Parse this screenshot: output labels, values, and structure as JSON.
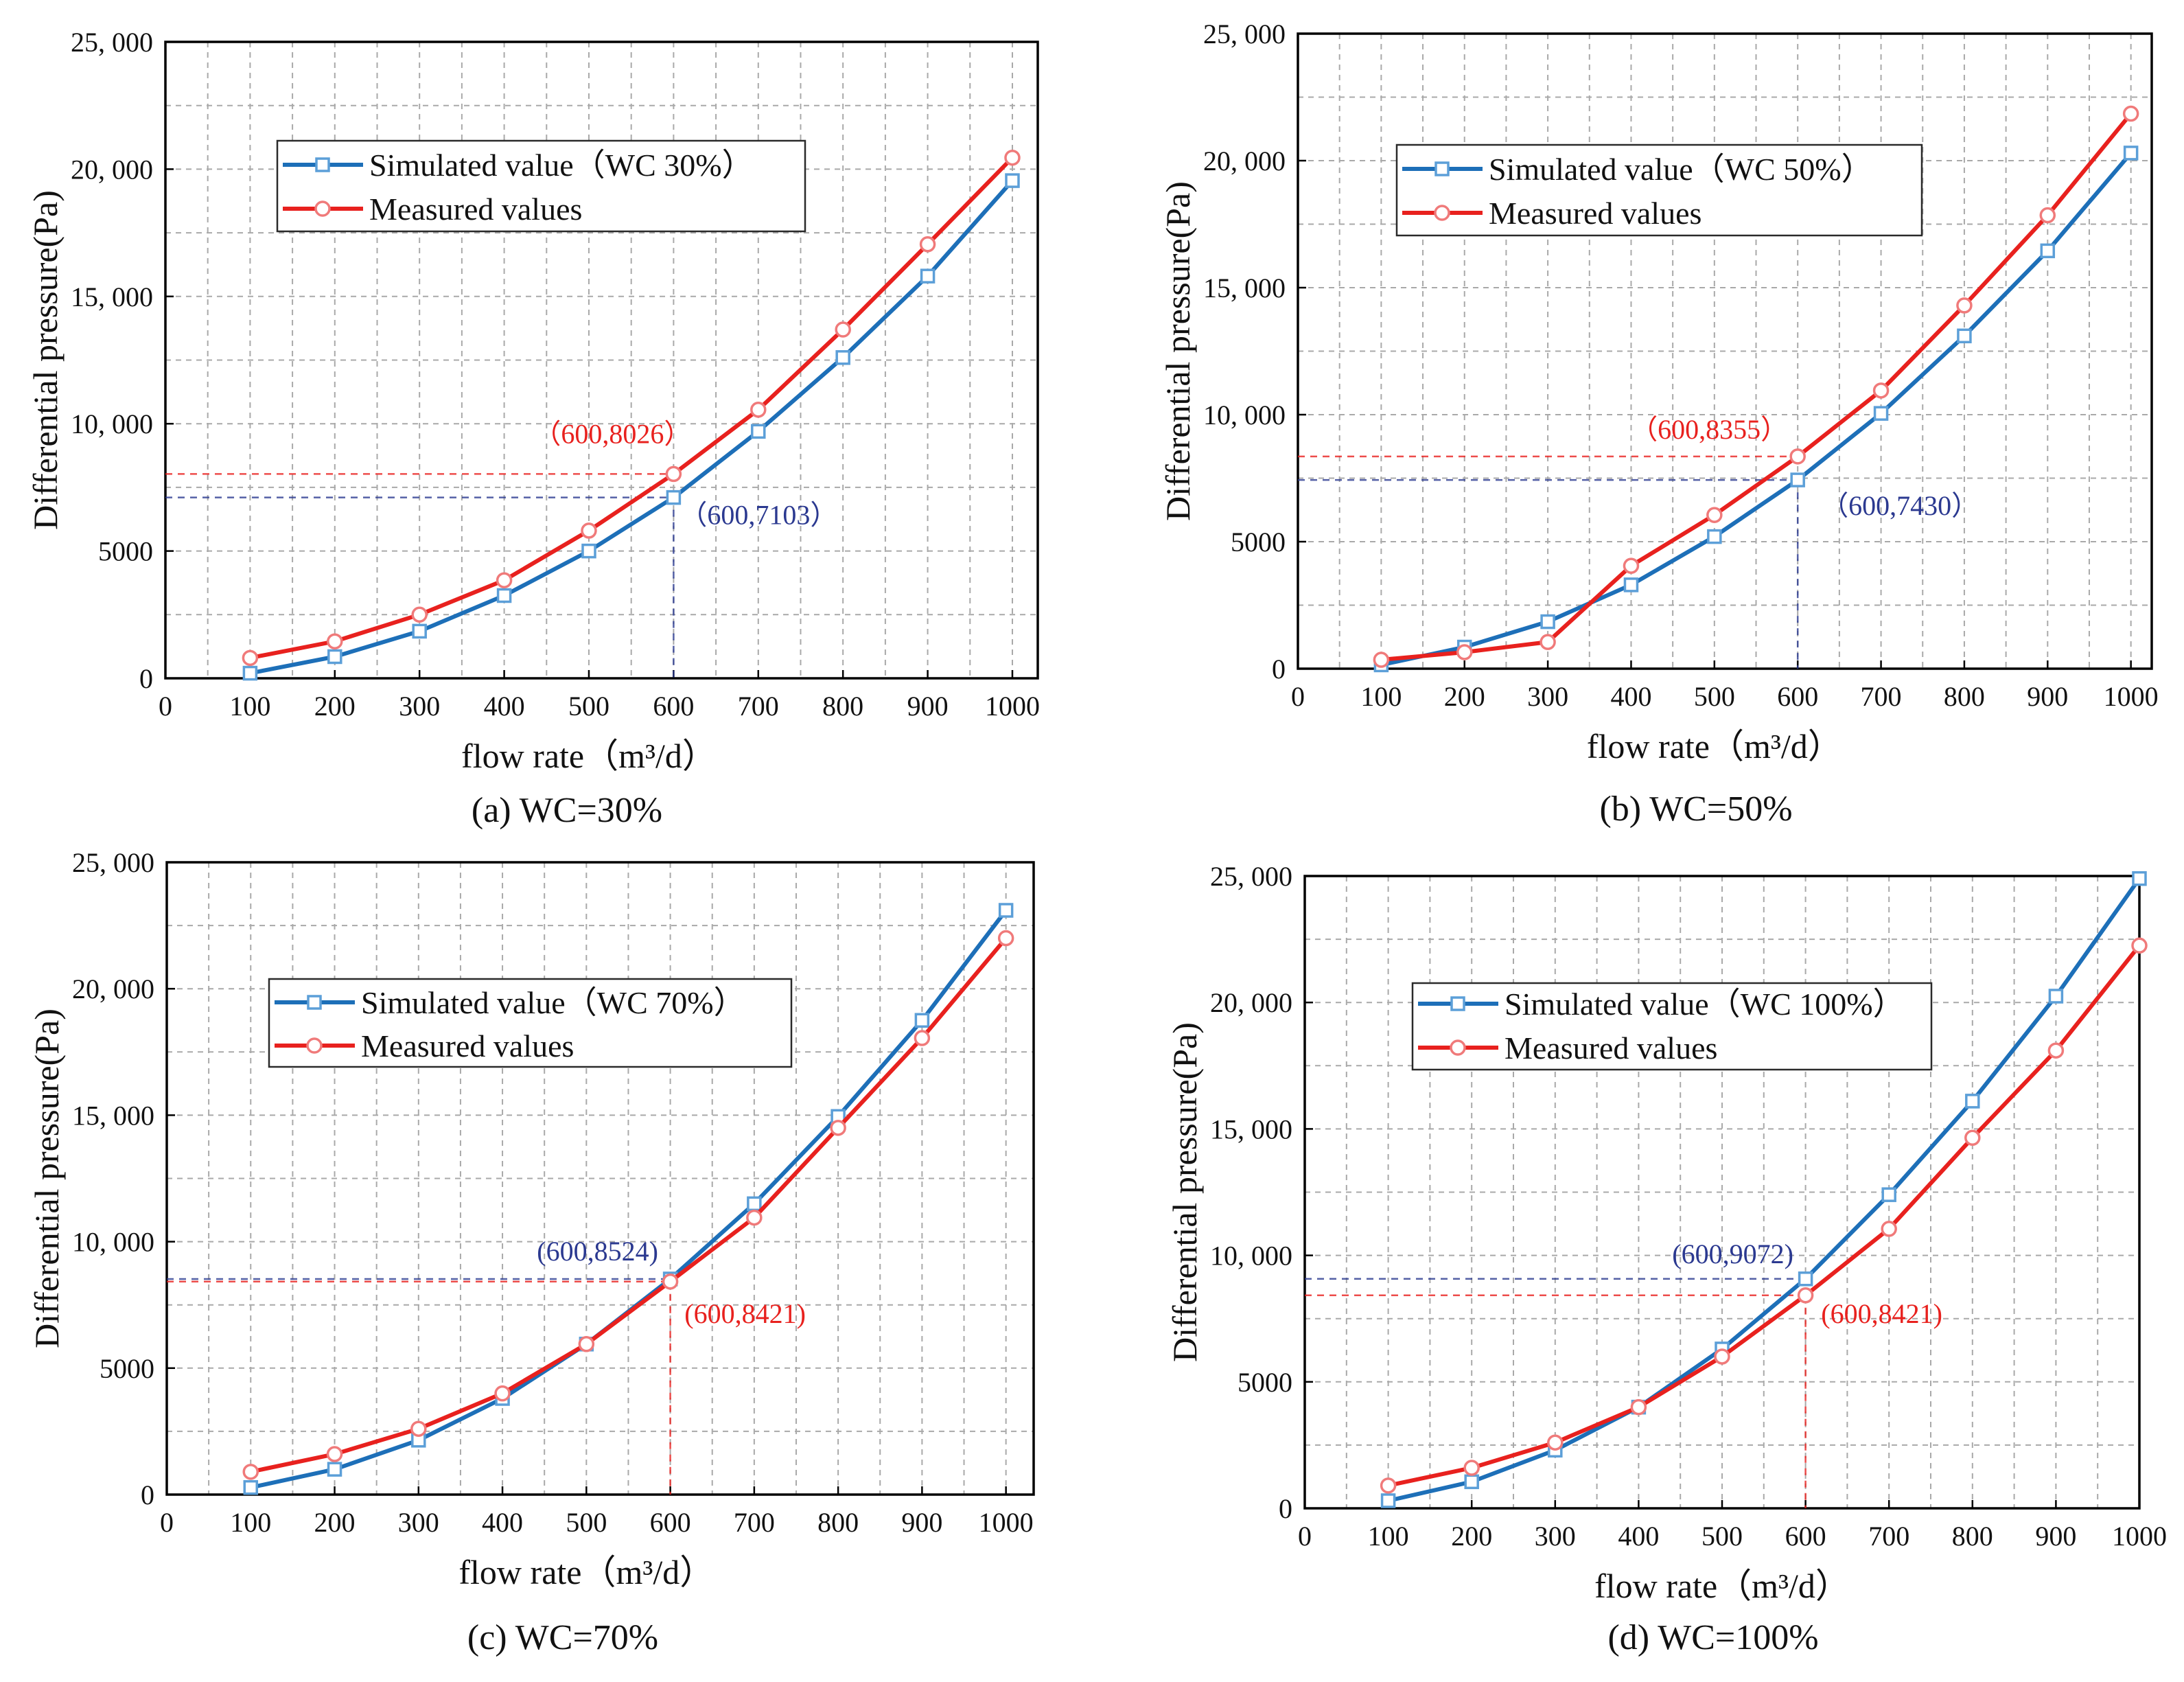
{
  "chart_data": [
    {
      "type": "line",
      "caption": "(a) WC=30%",
      "xlabel": "flow rate（m³/d）",
      "ylabel": "Differential pressure(Pa)",
      "x": [
        100,
        200,
        300,
        400,
        500,
        600,
        700,
        800,
        900,
        1000
      ],
      "x_ticks": [
        0,
        100,
        200,
        300,
        400,
        500,
        600,
        700,
        800,
        900,
        1000
      ],
      "x_tick_labels": [
        "0",
        "100",
        "200",
        "300",
        "400",
        "500",
        "600",
        "700",
        "800",
        "900",
        "1000"
      ],
      "y_ticks": [
        0,
        5000,
        10000,
        15000,
        20000,
        25000
      ],
      "y_tick_labels": [
        "0",
        "5000",
        "10, 000",
        "15, 000",
        "20, 000",
        "25, 000"
      ],
      "xlim": [
        0,
        1030
      ],
      "ylim": [
        0,
        25000
      ],
      "grid": true,
      "legend_position": "upper-left",
      "series": [
        {
          "name": "Simulated value（WC 30%）",
          "color": "#1d6fb8",
          "marker": "square",
          "marker_color": "#5c9fd8",
          "values": [
            200,
            850,
            1850,
            3250,
            5000,
            7103,
            9700,
            12600,
            15800,
            19550
          ]
        },
        {
          "name": "Measured values",
          "color": "#e8211e",
          "marker": "circle",
          "marker_color": "#f07a7a",
          "values": [
            800,
            1450,
            2500,
            3850,
            5800,
            8026,
            10550,
            13700,
            17050,
            20450
          ]
        }
      ],
      "annotations": [
        {
          "text": "（600,8026）",
          "x": 600,
          "y": 8026,
          "color": "#e8211e",
          "vertical_guide": false
        },
        {
          "text": "（600,7103）",
          "x": 600,
          "y": 7103,
          "color": "#2b3990",
          "vertical_guide": true
        }
      ]
    },
    {
      "type": "line",
      "caption": "(b) WC=50%",
      "xlabel": "flow rate（m³/d）",
      "ylabel": "Differential pressure(Pa)",
      "x": [
        100,
        200,
        300,
        400,
        500,
        600,
        700,
        800,
        900,
        1000
      ],
      "x_ticks": [
        0,
        100,
        200,
        300,
        400,
        500,
        600,
        700,
        800,
        900,
        1000
      ],
      "x_tick_labels": [
        "0",
        "100",
        "200",
        "300",
        "400",
        "500",
        "600",
        "700",
        "800",
        "900",
        "1000"
      ],
      "y_ticks": [
        0,
        5000,
        10000,
        15000,
        20000,
        25000
      ],
      "y_tick_labels": [
        "0",
        "5000",
        "10, 000",
        "15, 000",
        "20, 000",
        "25, 000"
      ],
      "xlim": [
        0,
        1025
      ],
      "ylim": [
        0,
        25000
      ],
      "grid": true,
      "legend_position": "upper-left",
      "series": [
        {
          "name": "Simulated value（WC 50%）",
          "color": "#1d6fb8",
          "marker": "square",
          "marker_color": "#5c9fd8",
          "values": [
            150,
            850,
            1850,
            3300,
            5200,
            7430,
            10050,
            13100,
            16450,
            20300
          ]
        },
        {
          "name": "Measured values",
          "color": "#e8211e",
          "marker": "circle",
          "marker_color": "#f07a7a",
          "values": [
            350,
            650,
            1050,
            4050,
            6050,
            8355,
            10950,
            14300,
            17850,
            21850
          ]
        }
      ],
      "annotations": [
        {
          "text": "（600,8355）",
          "x": 600,
          "y": 8355,
          "color": "#e8211e",
          "vertical_guide": false
        },
        {
          "text": "（600,7430）",
          "x": 600,
          "y": 7430,
          "color": "#2b3990",
          "vertical_guide": true
        }
      ]
    },
    {
      "type": "line",
      "caption": "(c) WC=70%",
      "xlabel": "flow rate（m³/d）",
      "ylabel": "Differential pressure(Pa)",
      "x": [
        100,
        200,
        300,
        400,
        500,
        600,
        700,
        800,
        900,
        1000
      ],
      "x_ticks": [
        0,
        100,
        200,
        300,
        400,
        500,
        600,
        700,
        800,
        900,
        1000
      ],
      "x_tick_labels": [
        "0",
        "100",
        "200",
        "300",
        "400",
        "500",
        "600",
        "700",
        "800",
        "900",
        "1000"
      ],
      "y_ticks": [
        0,
        5000,
        10000,
        15000,
        20000,
        25000
      ],
      "y_tick_labels": [
        "0",
        "5000",
        "10, 000",
        "15, 000",
        "20, 000",
        "25, 000"
      ],
      "xlim": [
        0,
        1033
      ],
      "ylim": [
        0,
        25000
      ],
      "grid": true,
      "legend_position": "upper-left",
      "series": [
        {
          "name": "Simulated value（WC 70%）",
          "color": "#1d6fb8",
          "marker": "square",
          "marker_color": "#5c9fd8",
          "values": [
            280,
            1000,
            2150,
            3800,
            5950,
            8524,
            11500,
            14950,
            18750,
            23100
          ]
        },
        {
          "name": "Measured values",
          "color": "#e8211e",
          "marker": "circle",
          "marker_color": "#f07a7a",
          "values": [
            900,
            1600,
            2600,
            4000,
            5950,
            8421,
            10950,
            14500,
            18050,
            22000
          ]
        }
      ],
      "annotations": [
        {
          "text": "(600,8524)",
          "x": 600,
          "y": 8524,
          "color": "#2b3990",
          "vertical_guide": false
        },
        {
          "text": "(600,8421)",
          "x": 600,
          "y": 8421,
          "color": "#e8211e",
          "vertical_guide": true
        }
      ]
    },
    {
      "type": "line",
      "caption": "(d) WC=100%",
      "xlabel": "flow rate（m³/d）",
      "ylabel": "Differential pressure(Pa)",
      "x": [
        100,
        200,
        300,
        400,
        500,
        600,
        700,
        800,
        900,
        1000
      ],
      "x_ticks": [
        0,
        100,
        200,
        300,
        400,
        500,
        600,
        700,
        800,
        900,
        1000
      ],
      "x_tick_labels": [
        "0",
        "100",
        "200",
        "300",
        "400",
        "500",
        "600",
        "700",
        "800",
        "900",
        "1000"
      ],
      "y_ticks": [
        0,
        5000,
        10000,
        15000,
        20000,
        25000
      ],
      "y_tick_labels": [
        "0",
        "5000",
        "10, 000",
        "15, 000",
        "20, 000",
        "25, 000"
      ],
      "xlim": [
        0,
        1000
      ],
      "ylim": [
        0,
        25000
      ],
      "grid": true,
      "legend_position": "upper-left",
      "series": [
        {
          "name": "Simulated value（WC 100%）",
          "color": "#1d6fb8",
          "marker": "square",
          "marker_color": "#5c9fd8",
          "values": [
            300,
            1050,
            2300,
            4000,
            6300,
            9072,
            12400,
            16100,
            20250,
            24900
          ]
        },
        {
          "name": "Measured values",
          "color": "#e8211e",
          "marker": "circle",
          "marker_color": "#f07a7a",
          "values": [
            900,
            1600,
            2600,
            4000,
            6000,
            8421,
            11050,
            14650,
            18100,
            22250
          ]
        }
      ],
      "annotations": [
        {
          "text": "(600,9072)",
          "x": 600,
          "y": 9072,
          "color": "#2b3990",
          "vertical_guide": false
        },
        {
          "text": "(600,8421)",
          "x": 600,
          "y": 8421,
          "color": "#e8211e",
          "vertical_guide": true
        }
      ]
    }
  ]
}
